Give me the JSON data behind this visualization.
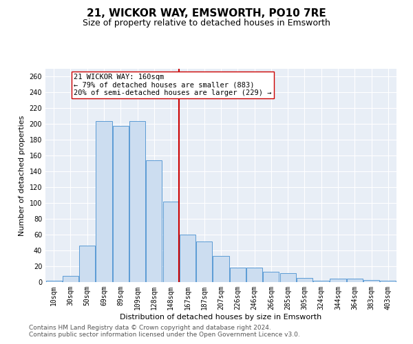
{
  "title": "21, WICKOR WAY, EMSWORTH, PO10 7RE",
  "subtitle": "Size of property relative to detached houses in Emsworth",
  "xlabel": "Distribution of detached houses by size in Emsworth",
  "ylabel": "Number of detached properties",
  "categories": [
    "10sqm",
    "30sqm",
    "50sqm",
    "69sqm",
    "89sqm",
    "109sqm",
    "128sqm",
    "148sqm",
    "167sqm",
    "187sqm",
    "207sqm",
    "226sqm",
    "246sqm",
    "266sqm",
    "285sqm",
    "305sqm",
    "324sqm",
    "344sqm",
    "364sqm",
    "383sqm",
    "403sqm"
  ],
  "values": [
    2,
    8,
    46,
    204,
    198,
    204,
    154,
    102,
    60,
    51,
    33,
    18,
    18,
    13,
    11,
    5,
    2,
    4,
    4,
    3,
    2
  ],
  "bar_color": "#ccddf0",
  "bar_edge_color": "#5b9bd5",
  "vline_color": "#cc0000",
  "vline_x": 7.5,
  "annotation_line1": "21 WICKOR WAY: 160sqm",
  "annotation_line2": "← 79% of detached houses are smaller (883)",
  "annotation_line3": "20% of semi-detached houses are larger (229) →",
  "ylim": [
    0,
    270
  ],
  "yticks": [
    0,
    20,
    40,
    60,
    80,
    100,
    120,
    140,
    160,
    180,
    200,
    220,
    240,
    260
  ],
  "footer1": "Contains HM Land Registry data © Crown copyright and database right 2024.",
  "footer2": "Contains public sector information licensed under the Open Government Licence v3.0.",
  "background_color": "#e8eef6",
  "title_fontsize": 11,
  "subtitle_fontsize": 9,
  "axis_label_fontsize": 8,
  "tick_fontsize": 7,
  "annotation_fontsize": 7.5,
  "footer_fontsize": 6.5,
  "ylabel_fontsize": 8
}
